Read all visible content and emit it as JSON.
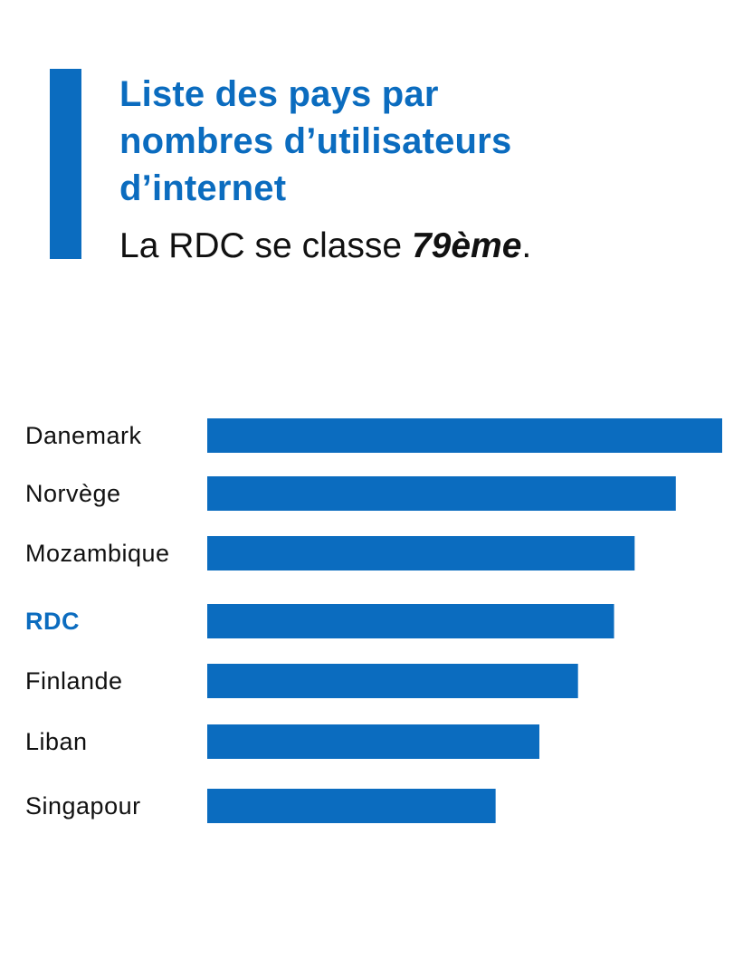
{
  "header": {
    "title_lines": [
      "Liste des pays par",
      "nombres d’utilisateurs",
      "d’internet"
    ],
    "subtitle_prefix": "La RDC se classe ",
    "subtitle_rank": "79ème",
    "subtitle_suffix": "."
  },
  "colors": {
    "accent": "#0b6cbf",
    "bar": "#0b6cbf",
    "label": "#111111",
    "background": "#ffffff"
  },
  "chart_data": {
    "type": "bar",
    "orientation": "horizontal",
    "title": "Liste des pays par nombres d’utilisateurs d’internet",
    "subtitle": "La RDC se classe 79ème.",
    "xlabel": "",
    "ylabel": "",
    "categories": [
      "Danemark",
      "Norvège",
      "Mozambique",
      "RDC",
      "Finlande",
      "Liban",
      "Singapour"
    ],
    "values": [
      100,
      91,
      83,
      79,
      72,
      64.5,
      56
    ],
    "highlight": "RDC",
    "xlim": [
      0,
      100
    ],
    "grid": false,
    "legend": "none"
  }
}
